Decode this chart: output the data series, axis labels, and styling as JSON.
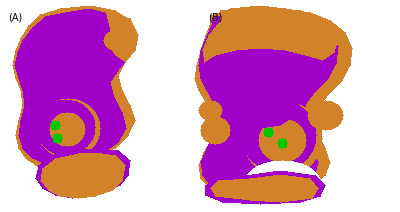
{
  "figsize": [
    4.0,
    2.12
  ],
  "dpi": 100,
  "bg_color": "#ffffff",
  "label_A": "(A)",
  "label_B": "(B)",
  "label_fontsize": 7,
  "purple": [
    160,
    0,
    200
  ],
  "orange": [
    210,
    130,
    40
  ],
  "green": [
    0,
    200,
    0
  ],
  "white": [
    255,
    255,
    255
  ]
}
